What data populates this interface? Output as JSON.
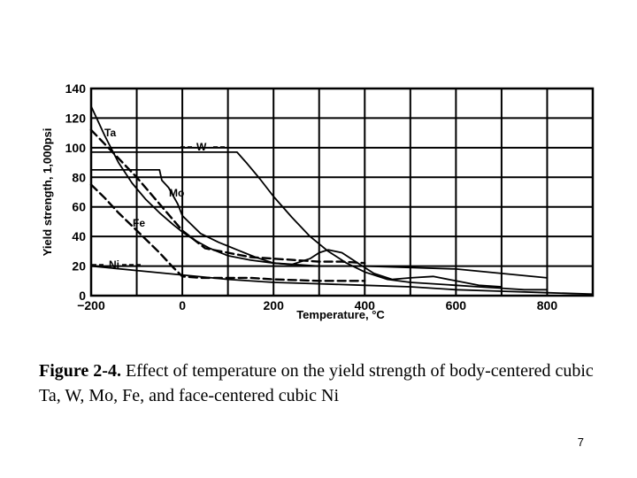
{
  "slide": {
    "caption_bold": "Figure 2-4.",
    "caption_text": "Effect of temperature on the yield strength of body-centered cubic Ta, W, Mo, Fe, and face-centered cubic Ni",
    "page_number": "7"
  },
  "chart_data": {
    "type": "line",
    "title": "",
    "xlabel": "Temperature, °C",
    "ylabel": "Yield strength, 1,000psi",
    "xlim": [
      -200,
      900
    ],
    "ylim": [
      0,
      140
    ],
    "x_ticks": [
      -200,
      0,
      200,
      400,
      600,
      800
    ],
    "y_ticks": [
      0,
      20,
      40,
      60,
      80,
      100,
      120,
      140
    ],
    "x_tick_labels": [
      "−200",
      "0",
      "200",
      "400",
      "600",
      "800"
    ],
    "y_tick_labels": [
      "0",
      "20",
      "40",
      "60",
      "80",
      "100",
      "120",
      "140"
    ],
    "grid": true,
    "series": [
      {
        "name": "Ta",
        "style": "solid",
        "x": [
          -200,
          -170,
          -140,
          -110,
          -80,
          -50,
          -20,
          0,
          30,
          60,
          100,
          150,
          200,
          300,
          400,
          600,
          800
        ],
        "y": [
          128,
          108,
          90,
          76,
          65,
          56,
          48,
          43,
          37,
          32,
          27,
          24,
          22,
          20,
          20,
          18,
          12
        ]
      },
      {
        "name": "W",
        "style": "solid",
        "x": [
          -200,
          -100,
          0,
          120,
          140,
          170,
          200,
          240,
          280,
          320,
          360,
          400,
          450,
          500,
          550,
          600,
          650,
          700,
          750,
          800
        ],
        "y": [
          97,
          97,
          97,
          97,
          90,
          79,
          67,
          53,
          40,
          30,
          22,
          16,
          11,
          9,
          8,
          7,
          6,
          5,
          4,
          4
        ]
      },
      {
        "name": "Mo",
        "style": "solid",
        "x": [
          -200,
          -100,
          -50,
          -45,
          -30,
          -10,
          0,
          40,
          80,
          120,
          160,
          200,
          240,
          280,
          300,
          320,
          350,
          380,
          420,
          460,
          500,
          550,
          600,
          650,
          700
        ],
        "y": [
          85,
          85,
          85,
          78,
          73,
          62,
          54,
          42,
          36,
          31,
          26,
          22,
          21,
          25,
          29,
          31,
          29,
          23,
          15,
          11,
          12,
          13,
          10,
          7,
          6
        ]
      },
      {
        "name": "Fe",
        "style": "dashed",
        "x": [
          -200,
          -170,
          -140,
          -110,
          -80,
          -50,
          -20,
          0,
          40,
          100,
          150,
          200,
          300,
          400
        ],
        "y": [
          75,
          66,
          56,
          47,
          38,
          29,
          19,
          13,
          12,
          12,
          12,
          11,
          10,
          10
        ]
      },
      {
        "name": "Ni",
        "style": "solid",
        "x": [
          -200,
          -100,
          0,
          100,
          200,
          300,
          400,
          500,
          600,
          700,
          800,
          900
        ],
        "y": [
          20,
          17,
          14,
          11,
          9,
          8,
          7,
          6,
          4,
          3,
          2,
          1
        ]
      },
      {
        "name": "",
        "style": "dashed",
        "x": [
          -200,
          -150,
          -100,
          -50,
          0,
          50,
          100,
          150,
          200,
          250,
          300,
          350,
          400
        ],
        "y": [
          112,
          96,
          80,
          62,
          44,
          32,
          29,
          26,
          25,
          24,
          23,
          23,
          22
        ]
      }
    ],
    "series_labels": [
      "Ta",
      "W",
      "Mo",
      "Fe",
      "Ni"
    ]
  }
}
